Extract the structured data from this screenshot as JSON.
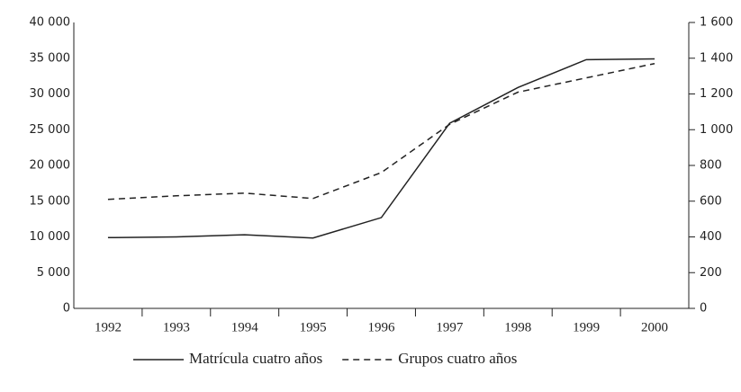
{
  "chart_data": {
    "type": "line",
    "categories": [
      "1992",
      "1993",
      "1994",
      "1995",
      "1996",
      "1997",
      "1998",
      "1999",
      "2000"
    ],
    "series": [
      {
        "name": "Matrícula cuatro años",
        "color": "#222222",
        "dash": "solid",
        "values": [
          9900,
          10000,
          10300,
          9850,
          12700,
          25900,
          30900,
          34800,
          34900
        ]
      },
      {
        "name": "Grupos cuatro años",
        "color": "#222222",
        "dash": "dashed",
        "axis": "y2",
        "values": [
          610,
          630,
          645,
          615,
          760,
          1030,
          1210,
          1290,
          1370
        ]
      }
    ],
    "ylim": [
      0,
      40000
    ],
    "yticks": [
      0,
      {
        "value": 5000,
        "label": "5 000"
      },
      {
        "value": 10000,
        "label": "10 000"
      },
      {
        "value": 15000,
        "label": "15 000"
      },
      {
        "value": 20000,
        "label": "20 000"
      },
      {
        "value": 25000,
        "label": "25 000"
      },
      {
        "value": 30000,
        "label": "30 000"
      },
      {
        "value": 35000,
        "label": "35 000"
      },
      {
        "value": 40000,
        "label": "40 000"
      }
    ],
    "y2lim": [
      0,
      1600
    ],
    "y2ticks": [
      0,
      200,
      400,
      600,
      800,
      {
        "value": 1000,
        "label": "1 000"
      },
      {
        "value": 1200,
        "label": "1 200"
      },
      {
        "value": 1400,
        "label": "1 400"
      },
      {
        "value": 1600,
        "label": "1 600"
      }
    ],
    "grid": false,
    "legend": "bottom"
  }
}
